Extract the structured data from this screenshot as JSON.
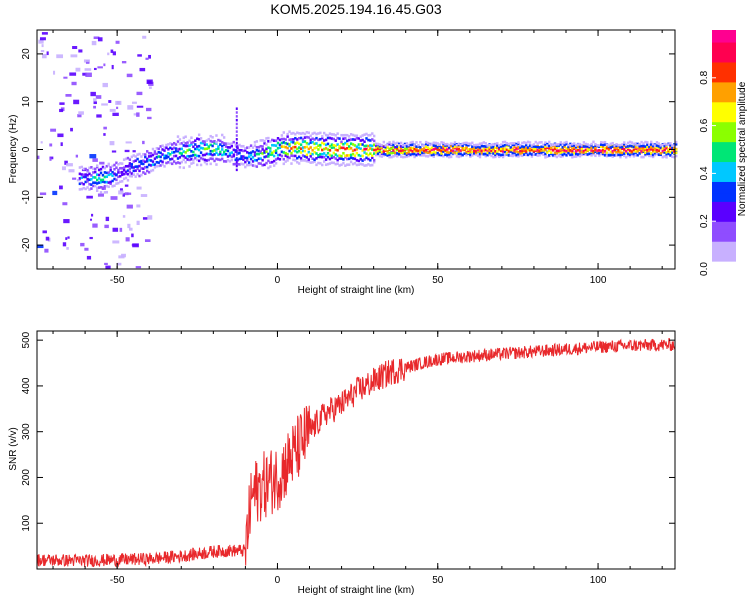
{
  "title": "KOM5.2025.194.16.45.G03",
  "colors": {
    "snr_line": "#e8282b",
    "frame": "#000000",
    "spectral_palette": [
      "#ffffff",
      "#c8b0ff",
      "#8f4dff",
      "#5a00ff",
      "#0033ff",
      "#00c8ff",
      "#00e676",
      "#8bff00",
      "#ffff00",
      "#ffa000",
      "#ff3000",
      "#ff0050",
      "#ff0090"
    ]
  },
  "chart_data": [
    {
      "type": "heatmap",
      "title": "KOM5.2025.194.16.45.G03",
      "xlabel": "Height of straight line (km)",
      "ylabel": "Frequency (Hz)",
      "xlim": [
        -75,
        124
      ],
      "ylim": [
        -25,
        25
      ],
      "x_ticks": [
        -50,
        0,
        50,
        100
      ],
      "x_tick_labels": [
        "-50",
        "0",
        "50",
        "100"
      ],
      "y_ticks": [
        -20,
        -10,
        0,
        10,
        20
      ],
      "y_tick_labels": [
        "-20",
        "-10",
        "0",
        "10",
        "20"
      ],
      "colorbar": {
        "label": "Normalized spectral amplitude",
        "range": [
          0,
          1
        ],
        "ticks": [
          0.0,
          0.2,
          0.4,
          0.6,
          0.8
        ],
        "tick_labels": [
          "0.0",
          "0.2",
          "0.4",
          "0.6",
          "0.8"
        ]
      },
      "ridge": {
        "x": [
          -60,
          -55,
          -50,
          -45,
          -40,
          -35,
          -30,
          -25,
          -20,
          -15,
          -10,
          -5,
          0,
          5,
          10,
          20,
          30,
          50,
          75,
          100,
          124
        ],
        "frequency": [
          -6,
          -6,
          -5,
          -3.5,
          -2.5,
          -1,
          -0.5,
          0,
          0,
          -0.5,
          -1.5,
          -1,
          0.2,
          0.5,
          0.2,
          0,
          0,
          0,
          0,
          0,
          0
        ],
        "amplitude": [
          0.35,
          0.55,
          0.3,
          0.35,
          0.45,
          0.4,
          0.5,
          0.55,
          0.55,
          0.4,
          0.35,
          0.5,
          0.65,
          0.75,
          0.8,
          0.8,
          0.85,
          0.95,
          0.95,
          0.97,
          0.95
        ]
      },
      "scatter": {
        "x_range": [
          -75,
          -40
        ],
        "frequency_range": [
          -25,
          25
        ],
        "amplitude": 0.1
      }
    },
    {
      "type": "line",
      "xlabel": "Height of straight line (km)",
      "ylabel": "SNR (v/v)",
      "xlim": [
        -75,
        124
      ],
      "ylim": [
        0,
        520
      ],
      "x_ticks": [
        -50,
        0,
        50,
        100
      ],
      "x_tick_labels": [
        "-50",
        "0",
        "50",
        "100"
      ],
      "y_ticks": [
        100,
        200,
        300,
        400,
        500
      ],
      "y_tick_labels": [
        "100",
        "200",
        "300",
        "400",
        "500"
      ],
      "series": [
        {
          "x": [
            -75,
            -60,
            -50,
            -40,
            -30,
            -20,
            -15,
            -10,
            -8,
            -5,
            0,
            5,
            10,
            15,
            20,
            25,
            30,
            35,
            40,
            45,
            50,
            60,
            70,
            80,
            90,
            100,
            110,
            124
          ],
          "values": [
            20,
            18,
            20,
            22,
            28,
            38,
            40,
            40,
            160,
            180,
            200,
            250,
            300,
            340,
            360,
            390,
            410,
            430,
            440,
            450,
            458,
            465,
            470,
            475,
            480,
            485,
            488,
            490
          ]
        }
      ]
    }
  ]
}
